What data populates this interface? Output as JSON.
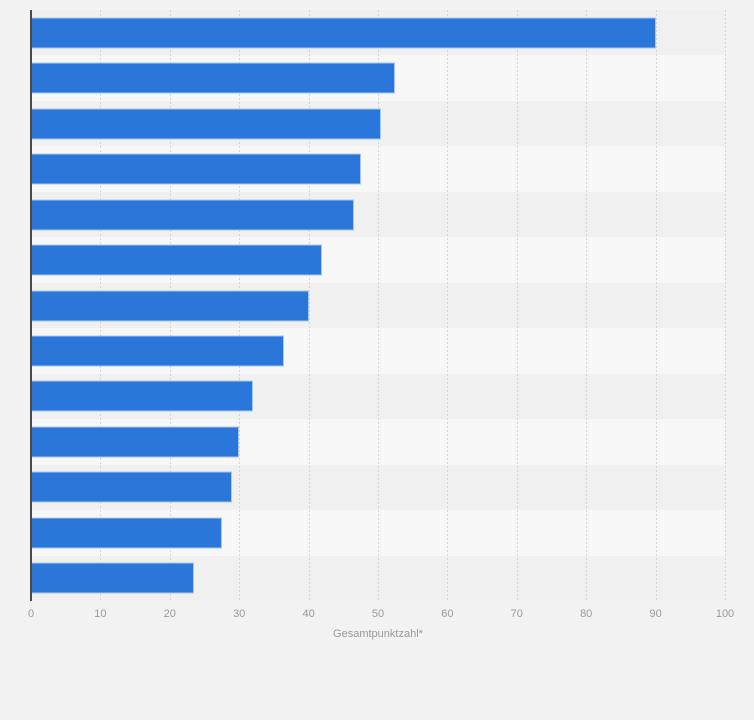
{
  "chart_data": {
    "type": "bar",
    "orientation": "horizontal",
    "title": "",
    "xlabel": "Gesamtpunktzahl*",
    "ylabel": "",
    "categories": [
      "",
      "",
      "",
      "",
      "",
      "",
      "",
      "",
      "",
      "",
      "",
      "",
      ""
    ],
    "values": [
      90,
      52.5,
      50.5,
      47.5,
      46.5,
      42,
      40,
      36.5,
      32,
      30,
      29,
      27.5,
      23.5
    ],
    "xticks": [
      0,
      10,
      20,
      30,
      40,
      50,
      60,
      70,
      80,
      90,
      100
    ],
    "xlim": [
      0,
      100
    ],
    "grid": "vertical-dashed",
    "legend": "none",
    "colors": {
      "bar_fill": "#2a77d9",
      "bar_border": "#a9c7ed",
      "page_background": "#f2f2f2",
      "row_stripe_odd": "#f0f0f1",
      "row_stripe_even": "#f7f7f8",
      "gridline": "#d6d6d6",
      "axis_line": "#4a4a4a",
      "tick_text": "#999999"
    }
  }
}
